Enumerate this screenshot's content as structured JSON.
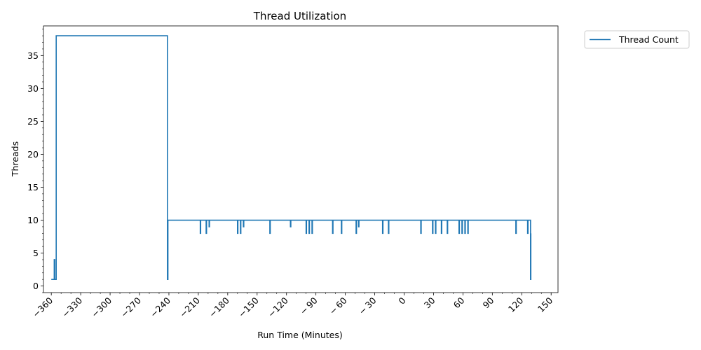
{
  "chart_data": {
    "type": "line",
    "title": "Thread Utilization",
    "xlabel": "Run Time (Minutes)",
    "ylabel": "Threads",
    "xlim": [
      -368,
      157
    ],
    "ylim": [
      -1,
      39.5
    ],
    "x_ticks": [
      -360,
      -330,
      -300,
      -270,
      -240,
      -210,
      -180,
      -150,
      -120,
      -90,
      -60,
      -30,
      0,
      30,
      60,
      90,
      120,
      150
    ],
    "x_tick_labels": [
      "−360",
      "−330",
      "−300",
      "−270",
      "−240",
      "−210",
      "−180",
      "−150",
      "−120",
      "− 90",
      "− 60",
      "− 30",
      "0",
      "30",
      "60",
      "90",
      "120",
      "150"
    ],
    "y_ticks": [
      0,
      5,
      10,
      15,
      20,
      25,
      30,
      35
    ],
    "y_tick_labels": [
      "0",
      "5",
      "10",
      "15",
      "20",
      "25",
      "30",
      "35"
    ],
    "grid": false,
    "legend_position": "outside-top-right",
    "color": "#1f77b4",
    "series": [
      {
        "name": "Thread Count",
        "step_points": [
          [
            -360,
            1
          ],
          [
            -357,
            1
          ],
          [
            -357,
            4
          ],
          [
            -356.5,
            4
          ],
          [
            -356.5,
            1
          ],
          [
            -355,
            1
          ],
          [
            -355,
            38
          ],
          [
            -241.5,
            38
          ],
          [
            -241.5,
            1
          ],
          [
            -241,
            1
          ],
          [
            -241,
            10
          ],
          [
            -208,
            10
          ],
          [
            -208,
            8
          ],
          [
            -207.6,
            8
          ],
          [
            -207.6,
            10
          ],
          [
            -202,
            10
          ],
          [
            -202,
            8
          ],
          [
            -201.6,
            8
          ],
          [
            -201.6,
            10
          ],
          [
            -199,
            10
          ],
          [
            -199,
            9
          ],
          [
            -198.6,
            9
          ],
          [
            -198.6,
            10
          ],
          [
            -170,
            10
          ],
          [
            -170,
            8
          ],
          [
            -169.6,
            8
          ],
          [
            -169.6,
            10
          ],
          [
            -167,
            10
          ],
          [
            -167,
            8
          ],
          [
            -166.6,
            8
          ],
          [
            -166.6,
            10
          ],
          [
            -164,
            10
          ],
          [
            -164,
            9
          ],
          [
            -163.6,
            9
          ],
          [
            -163.6,
            10
          ],
          [
            -137,
            10
          ],
          [
            -137,
            8
          ],
          [
            -136.6,
            8
          ],
          [
            -136.6,
            10
          ],
          [
            -116,
            10
          ],
          [
            -116,
            9
          ],
          [
            -115.6,
            9
          ],
          [
            -115.6,
            10
          ],
          [
            -100,
            10
          ],
          [
            -100,
            8
          ],
          [
            -99.6,
            8
          ],
          [
            -99.6,
            10
          ],
          [
            -97,
            10
          ],
          [
            -97,
            8
          ],
          [
            -96.6,
            8
          ],
          [
            -96.6,
            10
          ],
          [
            -94,
            10
          ],
          [
            -94,
            8
          ],
          [
            -93.6,
            8
          ],
          [
            -93.6,
            10
          ],
          [
            -73,
            10
          ],
          [
            -73,
            8
          ],
          [
            -72.6,
            8
          ],
          [
            -72.6,
            10
          ],
          [
            -64,
            10
          ],
          [
            -64,
            8
          ],
          [
            -63.6,
            8
          ],
          [
            -63.6,
            10
          ],
          [
            -49,
            10
          ],
          [
            -49,
            8
          ],
          [
            -48.6,
            8
          ],
          [
            -48.6,
            10
          ],
          [
            -46.5,
            10
          ],
          [
            -46.5,
            9
          ],
          [
            -46.1,
            9
          ],
          [
            -46.1,
            10
          ],
          [
            -22,
            10
          ],
          [
            -22,
            8
          ],
          [
            -21.6,
            8
          ],
          [
            -21.6,
            10
          ],
          [
            -16,
            10
          ],
          [
            -16,
            8
          ],
          [
            -15.6,
            8
          ],
          [
            -15.6,
            10
          ],
          [
            17,
            10
          ],
          [
            17,
            8
          ],
          [
            17.4,
            8
          ],
          [
            17.4,
            10
          ],
          [
            29,
            10
          ],
          [
            29,
            8
          ],
          [
            29.4,
            8
          ],
          [
            29.4,
            10
          ],
          [
            32,
            10
          ],
          [
            32,
            8
          ],
          [
            32.4,
            8
          ],
          [
            32.4,
            10
          ],
          [
            38,
            10
          ],
          [
            38,
            8
          ],
          [
            38.4,
            8
          ],
          [
            38.4,
            10
          ],
          [
            44,
            10
          ],
          [
            44,
            8
          ],
          [
            44.4,
            8
          ],
          [
            44.4,
            10
          ],
          [
            56,
            10
          ],
          [
            56,
            8
          ],
          [
            56.4,
            8
          ],
          [
            56.4,
            10
          ],
          [
            59,
            10
          ],
          [
            59,
            8
          ],
          [
            59.4,
            8
          ],
          [
            59.4,
            10
          ],
          [
            62,
            10
          ],
          [
            62,
            8
          ],
          [
            62.4,
            8
          ],
          [
            62.4,
            10
          ],
          [
            65,
            10
          ],
          [
            65,
            8
          ],
          [
            65.4,
            8
          ],
          [
            65.4,
            10
          ],
          [
            114,
            10
          ],
          [
            114,
            8
          ],
          [
            114.4,
            8
          ],
          [
            114.4,
            10
          ],
          [
            126,
            10
          ],
          [
            126,
            8
          ],
          [
            126.4,
            8
          ],
          [
            126.4,
            10
          ],
          [
            129,
            10
          ],
          [
            129,
            1
          ],
          [
            129.3,
            1
          ],
          [
            129.3,
            8
          ]
        ]
      }
    ]
  }
}
